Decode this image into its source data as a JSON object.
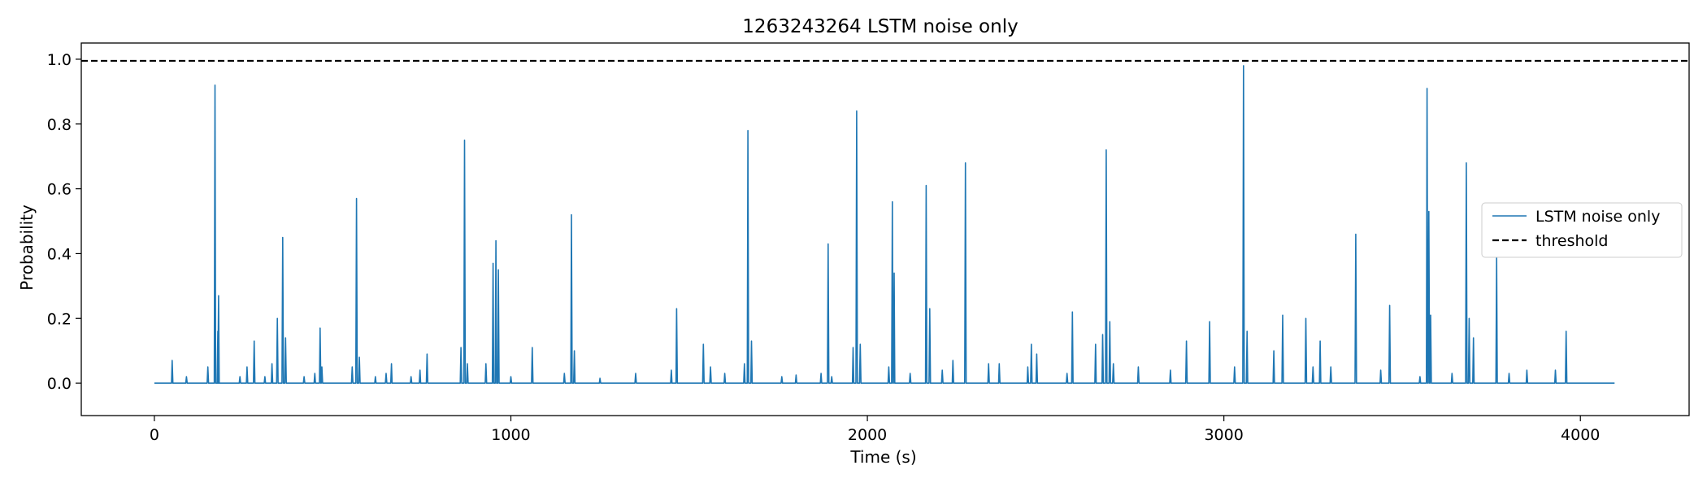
{
  "chart_data": {
    "type": "line",
    "title": "1263243264 LSTM noise only",
    "xlabel": "Time (s)",
    "ylabel": "Probability",
    "xlim": [
      -205,
      4305
    ],
    "ylim": [
      -0.1,
      1.05
    ],
    "xticks": [
      0,
      1000,
      2000,
      3000,
      4000
    ],
    "xtick_labels": [
      "0",
      "1000",
      "2000",
      "3000",
      "4000"
    ],
    "yticks": [
      0.0,
      0.2,
      0.4,
      0.6,
      0.8,
      1.0
    ],
    "ytick_labels": [
      "0.0",
      "0.2",
      "0.4",
      "0.6",
      "0.8",
      "1.0"
    ],
    "grid": false,
    "legend_position": "center-right",
    "x_range": [
      0,
      4096
    ],
    "baseline": 0.0,
    "series": [
      {
        "name": "LSTM noise only",
        "color": "#1f77b4",
        "style": "solid",
        "spikes": [
          [
            50,
            0.07
          ],
          [
            90,
            0.02
          ],
          [
            150,
            0.05
          ],
          [
            170,
            0.92
          ],
          [
            178,
            0.16
          ],
          [
            180,
            0.27
          ],
          [
            240,
            0.02
          ],
          [
            260,
            0.05
          ],
          [
            280,
            0.13
          ],
          [
            310,
            0.02
          ],
          [
            330,
            0.06
          ],
          [
            345,
            0.2
          ],
          [
            360,
            0.45
          ],
          [
            368,
            0.14
          ],
          [
            420,
            0.02
          ],
          [
            450,
            0.03
          ],
          [
            465,
            0.17
          ],
          [
            470,
            0.05
          ],
          [
            555,
            0.05
          ],
          [
            567,
            0.57
          ],
          [
            575,
            0.08
          ],
          [
            620,
            0.02
          ],
          [
            650,
            0.03
          ],
          [
            665,
            0.06
          ],
          [
            720,
            0.02
          ],
          [
            745,
            0.04
          ],
          [
            765,
            0.09
          ],
          [
            860,
            0.11
          ],
          [
            870,
            0.75
          ],
          [
            878,
            0.06
          ],
          [
            930,
            0.06
          ],
          [
            950,
            0.37
          ],
          [
            958,
            0.44
          ],
          [
            965,
            0.35
          ],
          [
            1000,
            0.02
          ],
          [
            1060,
            0.11
          ],
          [
            1150,
            0.03
          ],
          [
            1170,
            0.52
          ],
          [
            1178,
            0.1
          ],
          [
            1250,
            0.015
          ],
          [
            1350,
            0.03
          ],
          [
            1450,
            0.04
          ],
          [
            1465,
            0.23
          ],
          [
            1540,
            0.12
          ],
          [
            1560,
            0.05
          ],
          [
            1600,
            0.03
          ],
          [
            1655,
            0.06
          ],
          [
            1665,
            0.78
          ],
          [
            1675,
            0.13
          ],
          [
            1760,
            0.02
          ],
          [
            1800,
            0.025
          ],
          [
            1870,
            0.03
          ],
          [
            1890,
            0.43
          ],
          [
            1900,
            0.02
          ],
          [
            1960,
            0.11
          ],
          [
            1970,
            0.84
          ],
          [
            1980,
            0.12
          ],
          [
            2060,
            0.05
          ],
          [
            2070,
            0.56
          ],
          [
            2075,
            0.34
          ],
          [
            2120,
            0.03
          ],
          [
            2165,
            0.61
          ],
          [
            2175,
            0.23
          ],
          [
            2210,
            0.04
          ],
          [
            2240,
            0.07
          ],
          [
            2275,
            0.68
          ],
          [
            2340,
            0.06
          ],
          [
            2370,
            0.06
          ],
          [
            2450,
            0.05
          ],
          [
            2460,
            0.12
          ],
          [
            2475,
            0.09
          ],
          [
            2560,
            0.03
          ],
          [
            2575,
            0.22
          ],
          [
            2640,
            0.12
          ],
          [
            2660,
            0.15
          ],
          [
            2670,
            0.72
          ],
          [
            2680,
            0.19
          ],
          [
            2690,
            0.06
          ],
          [
            2760,
            0.05
          ],
          [
            2850,
            0.04
          ],
          [
            2895,
            0.13
          ],
          [
            2960,
            0.19
          ],
          [
            3030,
            0.05
          ],
          [
            3055,
            0.98
          ],
          [
            3065,
            0.16
          ],
          [
            3140,
            0.1
          ],
          [
            3165,
            0.21
          ],
          [
            3230,
            0.2
          ],
          [
            3250,
            0.05
          ],
          [
            3270,
            0.13
          ],
          [
            3300,
            0.05
          ],
          [
            3370,
            0.46
          ],
          [
            3440,
            0.04
          ],
          [
            3465,
            0.24
          ],
          [
            3550,
            0.02
          ],
          [
            3570,
            0.91
          ],
          [
            3575,
            0.53
          ],
          [
            3580,
            0.21
          ],
          [
            3640,
            0.03
          ],
          [
            3680,
            0.68
          ],
          [
            3688,
            0.2
          ],
          [
            3700,
            0.14
          ],
          [
            3765,
            0.39
          ],
          [
            3800,
            0.03
          ],
          [
            3850,
            0.04
          ],
          [
            3930,
            0.04
          ],
          [
            3960,
            0.16
          ]
        ]
      },
      {
        "name": "threshold",
        "color": "#000000",
        "style": "dashed",
        "value": 0.995
      }
    ]
  }
}
